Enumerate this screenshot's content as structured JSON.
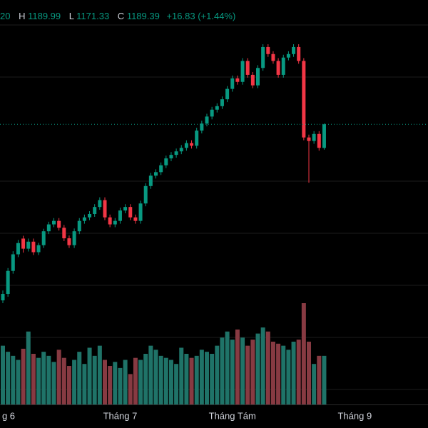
{
  "chart_data": {
    "type": "candlestick",
    "header": {
      "open_fragment": "20",
      "high_key": "H",
      "high_text": "1189.99",
      "low_key": "L",
      "low_text": "1171.33",
      "close_key": "C",
      "close_text": "1189.39",
      "change_text": "+16.83 (+1.44%)"
    },
    "categories": [
      "g 6",
      "Tháng 7",
      "Tháng Tám",
      "Tháng 9"
    ],
    "category_index": [
      0,
      23,
      45,
      69
    ],
    "up_color": "#089981",
    "down_color": "#f23645",
    "volume_up_color": "#1f7368",
    "volume_down_color": "#873a42",
    "open": [
      1064,
      1068.6,
      1085.0,
      1096.8,
      1108,
      1100.8,
      1105.8,
      1098.3,
      1103.3,
      1113.2,
      1118.1,
      1120.6,
      1115.7,
      1108.2,
      1103.3,
      1113.2,
      1120.6,
      1123.1,
      1125.5,
      1130.5,
      1135.4,
      1123.1,
      1118.1,
      1120.6,
      1128.0,
      1130.5,
      1123.1,
      1120.6,
      1133.0,
      1145.4,
      1152.8,
      1155.3,
      1160.2,
      1165.1,
      1167.6,
      1170.1,
      1172.6,
      1176.0,
      1174.1,
      1184.9,
      1189.9,
      1194.9,
      1199.8,
      1202.3,
      1207.2,
      1214.6,
      1222.1,
      1219.6,
      1234.5,
      1224.6,
      1217.1,
      1229.5,
      1244.4,
      1239.4,
      1234.5,
      1224.6,
      1236.9,
      1239.4,
      1244.4,
      1234.5,
      1180.0,
      1177.5,
      1182.5,
      1172.56
    ],
    "high": [
      1071,
      1087.0,
      1099.0,
      1107.0,
      1110,
      1108.0,
      1108.0,
      1105.0,
      1115.0,
      1120.0,
      1122.6,
      1122.6,
      1117.7,
      1110.2,
      1115.2,
      1122.6,
      1125.1,
      1127.5,
      1132.5,
      1137.4,
      1137.4,
      1125.1,
      1122.6,
      1130.0,
      1132.5,
      1132.5,
      1125.1,
      1135.0,
      1147.4,
      1154.8,
      1157.3,
      1162.2,
      1167.1,
      1169.6,
      1172.1,
      1174.6,
      1178.0,
      1178.0,
      1186.9,
      1191.9,
      1196.9,
      1201.8,
      1204.3,
      1209.2,
      1216.6,
      1224.1,
      1224.1,
      1236.5,
      1236.5,
      1226.6,
      1231.5,
      1246.4,
      1246.4,
      1241.4,
      1236.5,
      1238.9,
      1241.4,
      1246.4,
      1246.4,
      1236.5,
      1182.0,
      1184.5,
      1184.5,
      1189.99
    ],
    "low": [
      1062,
      1066.6,
      1083.0,
      1094.8,
      1098,
      1098.8,
      1096.3,
      1096.3,
      1101.3,
      1111.2,
      1116.1,
      1113.7,
      1106.2,
      1101.3,
      1101.3,
      1111.2,
      1118.6,
      1121.1,
      1123.5,
      1128.5,
      1121.1,
      1116.1,
      1116.1,
      1118.6,
      1126.0,
      1121.1,
      1118.6,
      1118.6,
      1131.0,
      1143.4,
      1150.8,
      1153.3,
      1158.2,
      1163.1,
      1165.6,
      1168.1,
      1170.6,
      1172.1,
      1172.1,
      1182.9,
      1187.9,
      1192.9,
      1197.8,
      1200.3,
      1205.2,
      1212.6,
      1217.6,
      1217.6,
      1222.6,
      1215.1,
      1215.1,
      1227.5,
      1237.4,
      1232.5,
      1222.6,
      1222.6,
      1234.9,
      1237.4,
      1232.5,
      1178.0,
      1147.8,
      1175.5,
      1170.6,
      1171.33
    ],
    "close": [
      1068.6,
      1085.0,
      1096.8,
      1104.8,
      1100.8,
      1105.8,
      1098.3,
      1103.3,
      1113.2,
      1118.1,
      1120.6,
      1115.7,
      1108.2,
      1103.3,
      1113.2,
      1120.6,
      1123.1,
      1125.5,
      1130.5,
      1135.4,
      1123.1,
      1118.1,
      1120.6,
      1128.0,
      1130.5,
      1123.1,
      1120.6,
      1133.0,
      1145.4,
      1152.8,
      1155.3,
      1160.2,
      1165.1,
      1167.6,
      1170.1,
      1172.6,
      1176.0,
      1174.1,
      1184.9,
      1189.9,
      1194.9,
      1199.8,
      1202.3,
      1207.2,
      1214.6,
      1222.1,
      1219.6,
      1234.5,
      1224.6,
      1217.1,
      1229.5,
      1244.4,
      1239.4,
      1234.5,
      1224.6,
      1236.9,
      1239.4,
      1244.4,
      1234.5,
      1180.0,
      1177.5,
      1182.5,
      1172.6,
      1189.39
    ],
    "volume": [
      58,
      52,
      48,
      44,
      55,
      72,
      50,
      46,
      52,
      48,
      42,
      54,
      46,
      38,
      44,
      52,
      40,
      56,
      48,
      58,
      44,
      38,
      42,
      36,
      44,
      30,
      46,
      44,
      50,
      58,
      54,
      48,
      46,
      44,
      40,
      56,
      50,
      46,
      48,
      54,
      52,
      50,
      58,
      66,
      72,
      64,
      74,
      66,
      58,
      64,
      70,
      76,
      72,
      62,
      60,
      58,
      54,
      62,
      64,
      100,
      62,
      40,
      48,
      48
    ]
  }
}
